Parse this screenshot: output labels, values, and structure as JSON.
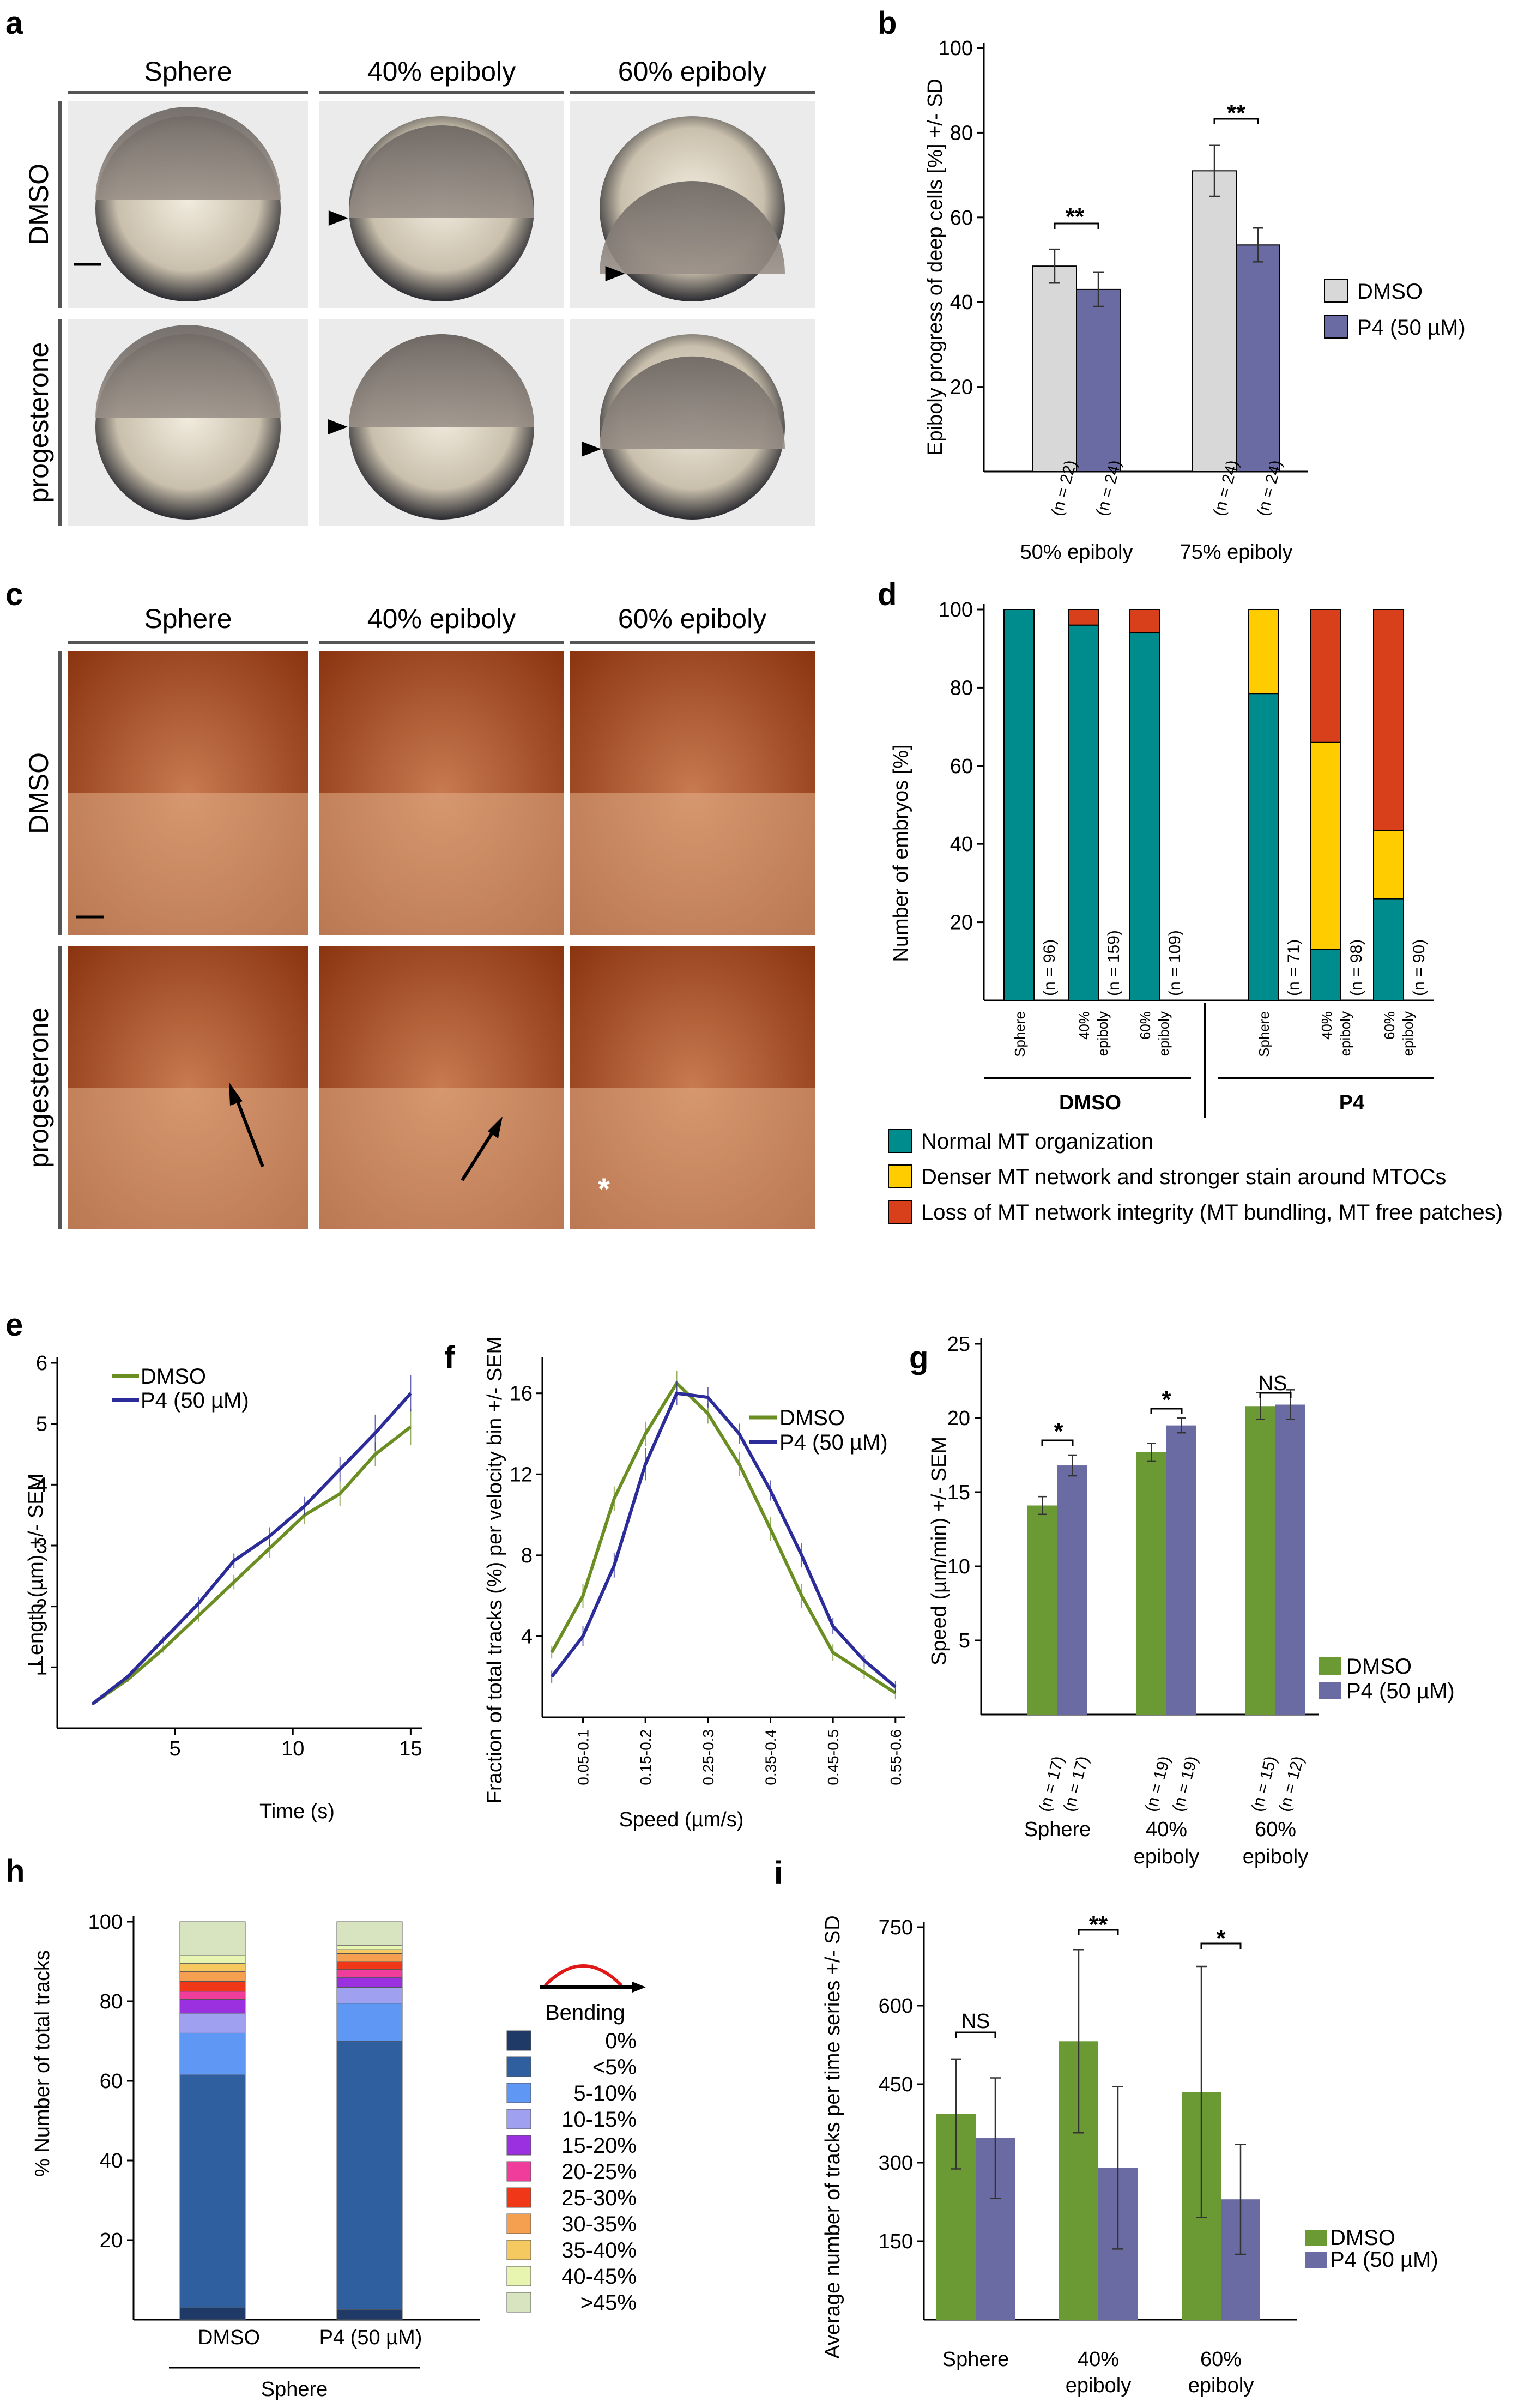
{
  "panel_a": {
    "label": "a",
    "col_headers": [
      "Sphere",
      "40% epiboly",
      "60% epiboly"
    ],
    "row_labels": [
      "DMSO",
      "progesterone"
    ]
  },
  "panel_b": {
    "label": "b",
    "sig": [
      "**",
      "**"
    ],
    "n_labels": [
      "(n = 22)",
      "(n = 24)",
      "(n = 24)",
      "(n = 24)"
    ]
  },
  "panel_c": {
    "label": "c",
    "col_headers": [
      "Sphere",
      "40% epiboly",
      "60% epiboly"
    ],
    "row_labels": [
      "DMSO",
      "progesterone"
    ],
    "asterisk": "*"
  },
  "panel_d": {
    "label": "d",
    "n_labels": [
      "(n = 96)",
      "(n = 159)",
      "(n = 109)",
      "(n = 71)",
      "(n = 98)",
      "(n = 90)"
    ],
    "stage_labels": [
      "Sphere",
      "40% epiboly",
      "60% epiboly",
      "Sphere",
      "40% epiboly",
      "60% epiboly"
    ],
    "groups": [
      "DMSO",
      "P4"
    ]
  },
  "panel_e": {
    "label": "e"
  },
  "panel_f": {
    "label": "f"
  },
  "panel_g": {
    "label": "g",
    "sig": [
      "*",
      "*",
      "NS"
    ],
    "n_labels": [
      "(n = 17)",
      "(n = 17)",
      "(n = 19)",
      "(n = 19)",
      "(n = 15)",
      "(n = 12)"
    ]
  },
  "panel_h": {
    "label": "h",
    "icon_label": "Bending",
    "group": "Sphere"
  },
  "panel_i": {
    "label": "i",
    "sig": [
      "NS",
      "**",
      "*"
    ]
  },
  "chart_data": [
    {
      "id": "b",
      "type": "bar",
      "categories": [
        "50% epiboly",
        "75% epiboly"
      ],
      "series": [
        {
          "name": "DMSO",
          "values": [
            48.5,
            71
          ],
          "errors": [
            4,
            6
          ]
        },
        {
          "name": "P4 (50 µM)",
          "values": [
            43,
            53.5
          ],
          "errors": [
            4,
            4
          ]
        }
      ],
      "ylabel": "Epiboly progress of deep cells [%] +/- SD",
      "ylim": [
        0,
        100
      ],
      "yticks": [
        20,
        40,
        60,
        80,
        100
      ],
      "colors": [
        "#d8d8d8",
        "#6b6ba3"
      ]
    },
    {
      "id": "d",
      "type": "bar",
      "categories": [
        "Sphere",
        "40% epiboly",
        "60% epiboly",
        "Sphere",
        "40% epiboly",
        "60% epiboly"
      ],
      "groups": [
        "DMSO",
        "DMSO",
        "DMSO",
        "P4",
        "P4",
        "P4"
      ],
      "series": [
        {
          "name": "Normal MT organization",
          "values": [
            100,
            96,
            94,
            78.5,
            13,
            26
          ]
        },
        {
          "name": "Denser MT network and stronger stain around MTOCs",
          "values": [
            0,
            0,
            0,
            21.5,
            53,
            17.5
          ]
        },
        {
          "name": "Loss of MT network integrity (MT bundling, MT free patches)",
          "values": [
            0,
            4,
            6,
            0,
            34,
            56.5
          ]
        }
      ],
      "ylabel": "Number of embryos [%]",
      "ylim": [
        0,
        100
      ],
      "yticks": [
        20,
        40,
        60,
        80,
        100
      ],
      "colors": [
        "#008c8c",
        "#ffcc00",
        "#d8401c"
      ]
    },
    {
      "id": "e",
      "type": "line",
      "x": [
        1.5,
        3,
        4.5,
        6,
        7.5,
        9,
        10.5,
        12,
        13.5,
        15
      ],
      "series": [
        {
          "name": "DMSO",
          "values": [
            0.4,
            0.8,
            1.3,
            1.85,
            2.4,
            2.95,
            3.5,
            3.85,
            4.5,
            4.95
          ],
          "errors": [
            0.02,
            0.04,
            0.06,
            0.1,
            0.12,
            0.15,
            0.15,
            0.2,
            0.2,
            0.3
          ]
        },
        {
          "name": "P4 (50 µM)",
          "values": [
            0.4,
            0.85,
            1.45,
            2.05,
            2.75,
            3.15,
            3.65,
            4.25,
            4.85,
            5.5
          ],
          "errors": [
            0.02,
            0.04,
            0.06,
            0.1,
            0.12,
            0.15,
            0.15,
            0.2,
            0.3,
            0.3
          ]
        }
      ],
      "xlabel": "Time (s)",
      "ylabel": "Length (µm) +/- SEM",
      "xlim": [
        0,
        15.5
      ],
      "ylim": [
        0,
        6
      ],
      "xticks": [
        5,
        10,
        15
      ],
      "yticks": [
        1,
        2,
        3,
        4,
        5,
        6
      ],
      "colors": [
        "#6b8e23",
        "#2b2b9a"
      ]
    },
    {
      "id": "f",
      "type": "line",
      "x": [
        0,
        1,
        2,
        3,
        4,
        5,
        6,
        7,
        8,
        9,
        10,
        11
      ],
      "xticklabels": [
        "0.05-0.1",
        "0.15-0.2",
        "0.25-0.3",
        "0.35-0.4",
        "0.45-0.5",
        "0.55-0.6"
      ],
      "xtickpos": [
        1,
        3,
        5,
        7,
        9,
        11
      ],
      "series": [
        {
          "name": "DMSO",
          "values": [
            3.2,
            6,
            10.8,
            14,
            16.5,
            15,
            12.5,
            9.3,
            6,
            3.2,
            2.2,
            1.2
          ],
          "errors": [
            0.3,
            0.6,
            0.6,
            0.6,
            0.6,
            0.5,
            0.6,
            0.6,
            0.6,
            0.4,
            0.3,
            0.3
          ]
        },
        {
          "name": "P4 (50 µM)",
          "values": [
            2,
            4,
            7.5,
            12.5,
            16,
            15.8,
            14,
            11.2,
            8,
            4.5,
            2.8,
            1.5
          ],
          "errors": [
            0.3,
            0.5,
            0.6,
            0.8,
            0.6,
            0.5,
            0.5,
            0.5,
            0.6,
            0.4,
            0.3,
            0.3
          ]
        }
      ],
      "xlabel": "Speed (µm/s)",
      "ylabel": "Fraction of total tracks (%) per velocity bin +/- SEM",
      "xlim": [
        -0.3,
        11.3
      ],
      "ylim": [
        0,
        17.5
      ],
      "yticks": [
        4,
        8,
        12,
        16
      ],
      "colors": [
        "#6b8e23",
        "#2b2b9a"
      ]
    },
    {
      "id": "g",
      "type": "bar",
      "categories": [
        "Sphere",
        "40% epiboly",
        "60% epiboly"
      ],
      "series": [
        {
          "name": "DMSO",
          "values": [
            14.1,
            17.7,
            20.8
          ],
          "errors": [
            0.6,
            0.6,
            0.9
          ]
        },
        {
          "name": "P4 (50 µM)",
          "values": [
            16.8,
            19.5,
            20.9
          ],
          "errors": [
            0.7,
            0.5,
            1
          ]
        }
      ],
      "ylabel": "Speed (µm/min) +/- SEM",
      "ylim": [
        0,
        25
      ],
      "yticks": [
        5,
        10,
        15,
        20,
        25
      ],
      "colors": [
        "#6b9a35",
        "#6b6ba3"
      ]
    },
    {
      "id": "h",
      "type": "bar",
      "categories": [
        "DMSO",
        "P4 (50 µM)"
      ],
      "series": [
        {
          "name": "0%",
          "values": [
            3,
            2.5
          ]
        },
        {
          "name": "<5%",
          "values": [
            58.5,
            67.5
          ]
        },
        {
          "name": "5-10%",
          "values": [
            10.5,
            9.5
          ]
        },
        {
          "name": "10-15%",
          "values": [
            5,
            4
          ]
        },
        {
          "name": "15-20%",
          "values": [
            3.5,
            2.5
          ]
        },
        {
          "name": "20-25%",
          "values": [
            2,
            2
          ]
        },
        {
          "name": "25-30%",
          "values": [
            2.5,
            2
          ]
        },
        {
          "name": "30-35%",
          "values": [
            2.5,
            2
          ]
        },
        {
          "name": "35-40%",
          "values": [
            2,
            1
          ]
        },
        {
          "name": "40-45%",
          "values": [
            2,
            1
          ]
        },
        {
          "name": ">45%",
          "values": [
            8.5,
            6
          ]
        }
      ],
      "ylabel": "% Number of total tracks",
      "ylim": [
        0,
        100
      ],
      "yticks": [
        20,
        40,
        60,
        80,
        100
      ],
      "colors": [
        "#1f3a66",
        "#2f5f9e",
        "#5f97f5",
        "#a0a0f0",
        "#9b30e0",
        "#f03c9a",
        "#f03818",
        "#f5a050",
        "#f5c860",
        "#e8f5b0",
        "#d8e4c0"
      ]
    },
    {
      "id": "i",
      "type": "bar",
      "categories": [
        "Sphere",
        "40% epiboly",
        "60% epiboly"
      ],
      "series": [
        {
          "name": "DMSO",
          "values": [
            393,
            532,
            435
          ],
          "errors": [
            105,
            175,
            240
          ]
        },
        {
          "name": "P4 (50 µM)",
          "values": [
            347,
            290,
            230
          ],
          "errors": [
            115,
            155,
            105
          ]
        }
      ],
      "ylabel": "Average number of tracks per time series +/- SD",
      "ylim": [
        0,
        750
      ],
      "yticks": [
        150,
        300,
        450,
        600,
        750
      ],
      "colors": [
        "#6b9a35",
        "#6b6ba3"
      ]
    }
  ]
}
